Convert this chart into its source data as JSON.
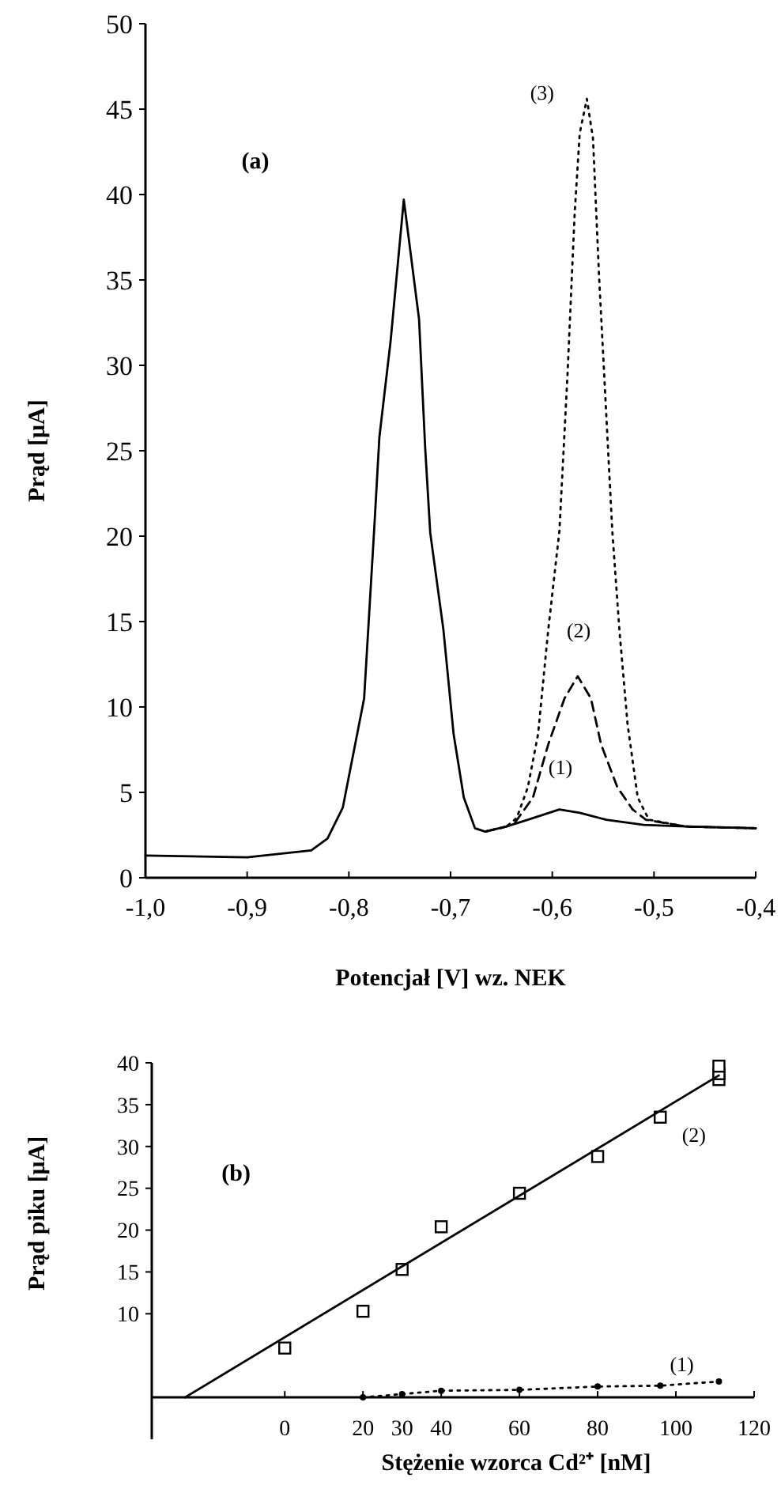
{
  "chart_data": [
    {
      "type": "line",
      "xlabel": "Potencjał [V] wz. NEK",
      "ylabel": "Prąd [μA]",
      "xlim": [
        -1.0,
        -0.4
      ],
      "ylim": [
        0,
        50
      ],
      "xticks": [
        {
          "value": -1.0,
          "label": "-1,0"
        },
        {
          "value": -0.9,
          "label": "-0,9"
        },
        {
          "value": -0.8,
          "label": "-0,8"
        },
        {
          "value": -0.7,
          "label": "-0,7"
        },
        {
          "value": -0.6,
          "label": "-0,6"
        },
        {
          "value": -0.5,
          "label": "-0,5"
        },
        {
          "value": -0.4,
          "label": "-0,4"
        }
      ],
      "yticks": [
        0,
        5,
        10,
        15,
        20,
        25,
        30,
        35,
        40,
        45,
        50
      ],
      "grid": false,
      "annotations": [
        "(a)",
        "(3)",
        "(2)",
        "(1)"
      ],
      "series": [
        {
          "line_style": "solid",
          "color": "#000000",
          "x": [
            -1.0,
            -0.9,
            -0.837,
            -0.821,
            -0.806,
            -0.785,
            -0.775,
            -0.77,
            -0.759,
            -0.746,
            -0.731,
            -0.725,
            -0.72,
            -0.707,
            -0.697,
            -0.687,
            -0.676,
            -0.666,
            -0.645,
            -0.624,
            -0.593,
            -0.573,
            -0.547,
            -0.51,
            -0.469,
            -0.4
          ],
          "values": [
            1.3,
            1.2,
            1.6,
            2.3,
            4.1,
            10.5,
            20.5,
            25.8,
            31.4,
            39.7,
            32.7,
            25.2,
            20.2,
            14.5,
            8.4,
            4.7,
            2.9,
            2.7,
            3.0,
            3.4,
            4.0,
            3.8,
            3.4,
            3.1,
            3.0,
            2.9
          ]
        },
        {
          "line_style": "dashed",
          "color": "#000000",
          "x": [
            -0.666,
            -0.645,
            -0.637,
            -0.619,
            -0.604,
            -0.588,
            -0.575,
            -0.562,
            -0.552,
            -0.536,
            -0.521,
            -0.508,
            -0.469,
            -0.4
          ],
          "values": [
            2.7,
            3.0,
            3.2,
            4.7,
            7.8,
            10.5,
            11.8,
            10.5,
            7.8,
            5.3,
            4.0,
            3.4,
            3.0,
            2.9
          ]
        },
        {
          "line_style": "dotted",
          "color": "#000000",
          "x": [
            -0.666,
            -0.645,
            -0.635,
            -0.624,
            -0.614,
            -0.604,
            -0.593,
            -0.585,
            -0.578,
            -0.573,
            -0.566,
            -0.56,
            -0.554,
            -0.549,
            -0.541,
            -0.534,
            -0.526,
            -0.516,
            -0.505,
            -0.469,
            -0.4
          ],
          "values": [
            2.7,
            3.0,
            3.5,
            5.3,
            8.4,
            14.5,
            20.3,
            29.5,
            38.9,
            43.6,
            45.6,
            43.3,
            35.2,
            29.5,
            20.3,
            14.5,
            9.0,
            4.7,
            3.4,
            3.0,
            2.9
          ]
        }
      ]
    },
    {
      "type": "scatter",
      "xlabel": "Stężenie wzorca Cd²⁺ [nM]",
      "ylabel": "Prąd piku [μA]",
      "xlim": [
        -34,
        120
      ],
      "ylim": [
        -5,
        40
      ],
      "xticks": [
        0,
        20,
        30,
        40,
        60,
        80,
        100,
        120
      ],
      "yticks": [
        10,
        15,
        20,
        25,
        30,
        35,
        40
      ],
      "grid": false,
      "annotations": [
        "(b)",
        "(2)",
        "(1)"
      ],
      "series": [
        {
          "marker": "square",
          "color": "#000000",
          "x": [
            0,
            20,
            30,
            40,
            60,
            80,
            96,
            111,
            111,
            111
          ],
          "values": [
            5.9,
            10.3,
            15.3,
            20.4,
            24.4,
            28.8,
            33.5,
            38.0,
            38.7,
            39.6
          ]
        },
        {
          "type": "line",
          "line_style": "solid",
          "color": "#000000",
          "x": [
            -25.5,
            111
          ],
          "values": [
            0,
            38.5
          ]
        },
        {
          "type": "line",
          "line_style": "dotted",
          "marker": "circle",
          "color": "#000000",
          "x": [
            20,
            30,
            40,
            60,
            80,
            96,
            111
          ],
          "values": [
            0.0,
            0.4,
            0.8,
            0.9,
            1.3,
            1.4,
            1.9
          ]
        }
      ]
    }
  ]
}
